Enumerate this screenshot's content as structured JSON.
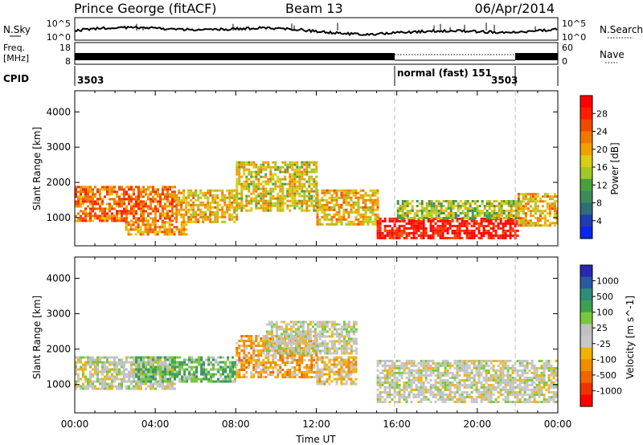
{
  "header": {
    "station": "Prince George (fitACF)",
    "beam": "Beam 13",
    "date": "06/Apr/2014"
  },
  "status_panels": {
    "nsky": {
      "label": "N.Sky",
      "ticks_left": [
        "10^5",
        "10^0"
      ],
      "ticks_right": [
        "10^5",
        "10^0"
      ],
      "right_label": "N.Search"
    },
    "freq": {
      "label_line1": "Freq.",
      "label_line2": "[MHz]",
      "ticks_left": [
        "18",
        "8"
      ],
      "ticks_right": [
        "60",
        "0"
      ],
      "right_label": "Nave"
    },
    "cpid": {
      "label": "CPID",
      "segments": [
        {
          "text": "3503",
          "start_hour": 0
        },
        {
          "text": "normal (fast) 151",
          "start_hour": 16
        },
        {
          "text": "3503",
          "start_hour": 22
        }
      ],
      "dashed_boundaries_hours": [
        16,
        22
      ]
    }
  },
  "colors": {
    "power_scale": [
      "#0a28e6",
      "#1e3cb4",
      "#2d6e78",
      "#3c8c5a",
      "#46a03c",
      "#a0c828",
      "#dccc14",
      "#f0a000",
      "#f07800",
      "#f04a00",
      "#ff1e00",
      "#ff0000"
    ],
    "velocity_scale": [
      "#2828b4",
      "#2a5aa0",
      "#2e8c78",
      "#3ca050",
      "#78c83c",
      "#c0c0c0",
      "#c8c8c8",
      "#f0b400",
      "#f08c00",
      "#f06400",
      "#f03200",
      "#ff0000"
    ]
  },
  "chart_data": [
    {
      "type": "heatmap",
      "name": "power",
      "xlabel": "",
      "ylabel": "Slant Range [km]",
      "xlim_hours": [
        0,
        24
      ],
      "ylim": [
        200,
        4600
      ],
      "yticks": [
        "1000",
        "2000",
        "3000",
        "4000"
      ],
      "colorbar": {
        "label": "Power [dB]",
        "ticks": [
          "4",
          "8",
          "12",
          "16",
          "20",
          "24",
          "28"
        ],
        "range": [
          0,
          30
        ]
      },
      "echo_regions": [
        {
          "t0": 0.0,
          "t1": 5.0,
          "r0": 900,
          "r1": 1900,
          "value": 22
        },
        {
          "t0": 2.5,
          "t1": 5.5,
          "r0": 500,
          "r1": 900,
          "value": 20
        },
        {
          "t0": 5.0,
          "t1": 8.0,
          "r0": 900,
          "r1": 1800,
          "value": 18
        },
        {
          "t0": 8.0,
          "t1": 12.0,
          "r0": 1200,
          "r1": 2600,
          "value": 16
        },
        {
          "t0": 12.0,
          "t1": 15.0,
          "r0": 800,
          "r1": 1800,
          "value": 18
        },
        {
          "t0": 15.0,
          "t1": 22.0,
          "r0": 400,
          "r1": 1000,
          "value": 28
        },
        {
          "t0": 16.0,
          "t1": 22.0,
          "r0": 1000,
          "r1": 1500,
          "value": 14
        },
        {
          "t0": 22.0,
          "t1": 24.0,
          "r0": 800,
          "r1": 1700,
          "value": 18
        }
      ]
    },
    {
      "type": "heatmap",
      "name": "velocity",
      "xlabel": "Time UT",
      "ylabel": "Slant Range [km]",
      "xticks": [
        "00:00",
        "04:00",
        "08:00",
        "12:00",
        "16:00",
        "20:00",
        "00:00"
      ],
      "xlim_hours": [
        0,
        24
      ],
      "ylim": [
        200,
        4600
      ],
      "yticks": [
        "1000",
        "2000",
        "3000",
        "4000"
      ],
      "colorbar": {
        "label": "Velocity [m s^-1]",
        "ticks": [
          "1000",
          "500",
          "100",
          "25",
          "-25",
          "-100",
          "-500",
          "-1000"
        ]
      },
      "echo_regions": [
        {
          "t0": 0.0,
          "t1": 5.0,
          "r0": 900,
          "r1": 1800,
          "value": 0
        },
        {
          "t0": 3.0,
          "t1": 8.0,
          "r0": 1100,
          "r1": 1800,
          "value": 300
        },
        {
          "t0": 8.0,
          "t1": 12.0,
          "r0": 1200,
          "r1": 2400,
          "value": -300
        },
        {
          "t0": 9.5,
          "t1": 14.0,
          "r0": 1900,
          "r1": 2800,
          "value": 0
        },
        {
          "t0": 12.0,
          "t1": 14.0,
          "r0": 1000,
          "r1": 1800,
          "value": -200
        },
        {
          "t0": 15.0,
          "t1": 24.0,
          "r0": 500,
          "r1": 1700,
          "value": 0
        }
      ]
    }
  ]
}
